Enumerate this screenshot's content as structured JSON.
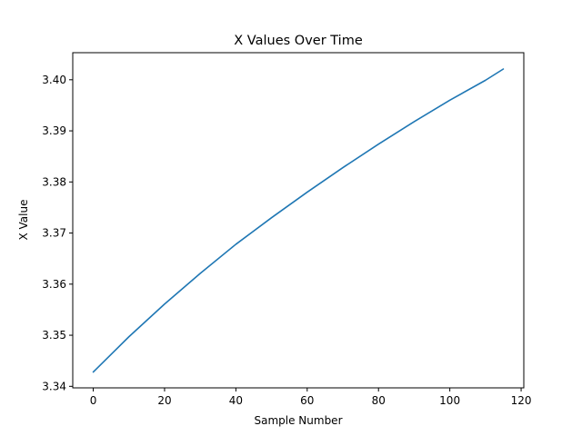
{
  "chart_data": {
    "type": "line",
    "title": "X Values Over Time",
    "xlabel": "Sample Number",
    "ylabel": "X Value",
    "xlim": [
      -5.75,
      120.75
    ],
    "ylim": [
      3.3397,
      3.4053
    ],
    "x_ticks": [
      0,
      20,
      40,
      60,
      80,
      100,
      120
    ],
    "x_tick_labels": [
      "0",
      "20",
      "40",
      "60",
      "80",
      "100",
      "120"
    ],
    "y_ticks": [
      3.34,
      3.35,
      3.36,
      3.37,
      3.38,
      3.39,
      3.4
    ],
    "y_tick_labels": [
      "3.34",
      "3.35",
      "3.36",
      "3.37",
      "3.38",
      "3.39",
      "3.40"
    ],
    "grid": false,
    "legend": "none",
    "series": [
      {
        "color": "#1f77b4",
        "x": [
          0,
          10,
          20,
          30,
          40,
          50,
          60,
          70,
          80,
          90,
          100,
          110,
          115
        ],
        "y": [
          3.3428,
          3.3497,
          3.3561,
          3.3621,
          3.3678,
          3.373,
          3.378,
          3.3828,
          3.3874,
          3.3918,
          3.396,
          3.3999,
          3.4021
        ]
      }
    ]
  }
}
